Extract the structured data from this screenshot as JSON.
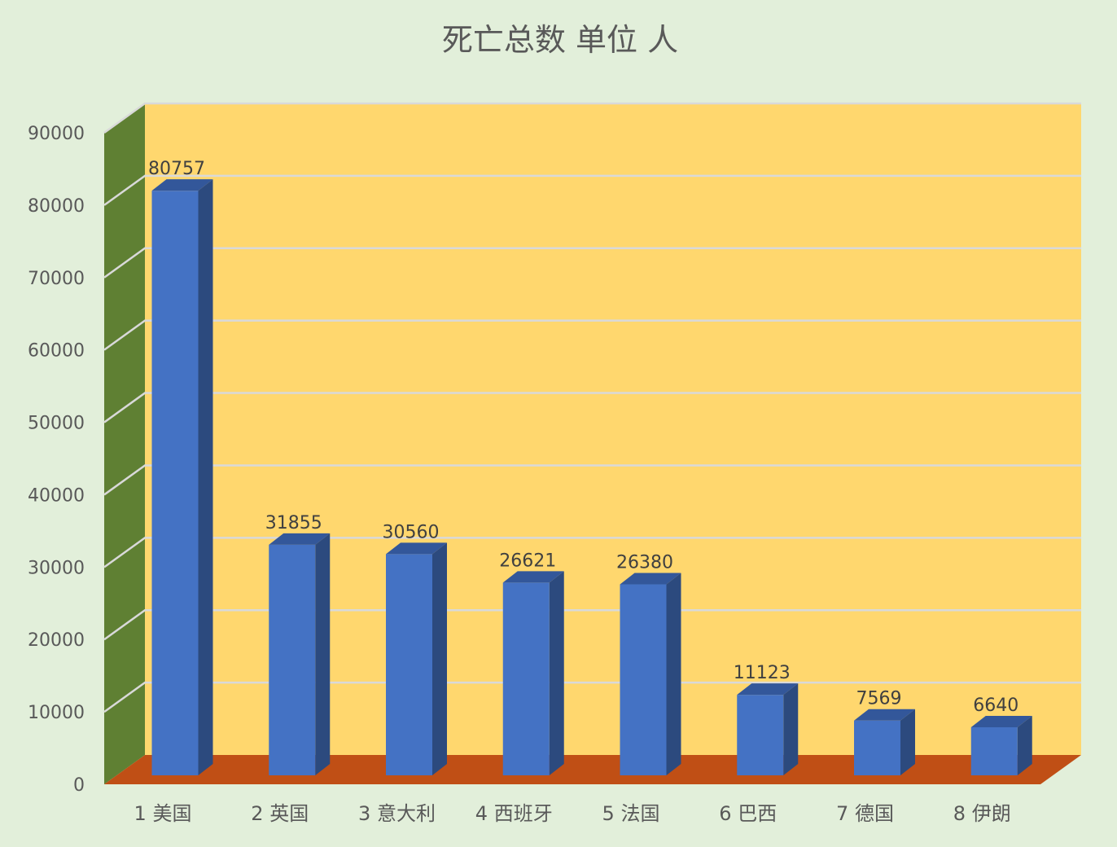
{
  "chart_data": {
    "type": "bar",
    "style": "3d-column",
    "title": "死亡总数 单位 人",
    "categories": [
      "1 美国",
      "2 英国",
      "3 意大利",
      "4 西班牙",
      "5 法国",
      "6 巴西",
      "7 德国",
      "8 伊朗"
    ],
    "values": [
      80757,
      31855,
      30560,
      26621,
      26380,
      11123,
      7569,
      6640
    ],
    "data_labels": [
      "80757",
      "31855",
      "30560",
      "26621",
      "26380",
      "11123",
      "7569",
      "6640"
    ],
    "ylim": [
      0,
      90000
    ],
    "yticks": [
      "0",
      "10000",
      "20000",
      "30000",
      "40000",
      "50000",
      "60000",
      "70000",
      "80000",
      "90000"
    ],
    "grid": true,
    "legend": "none",
    "colors": {
      "background": "#e2efda",
      "back_wall": "#ffd76e",
      "side_wall": "#5f8033",
      "floor": "#c04f15",
      "bar_front": "#4472c4",
      "bar_side": "#2c4a7e",
      "bar_top": "#33579a",
      "gridline": "#d9d9d9"
    }
  }
}
